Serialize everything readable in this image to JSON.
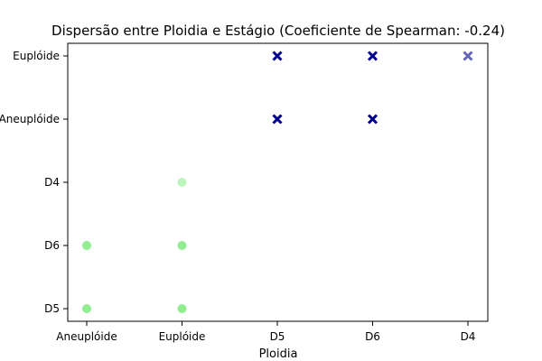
{
  "chart_data": {
    "type": "scatter",
    "title": "Dispersão entre Ploidia e Estágio (Coeficiente de Spearman: -0.24)",
    "xlabel": "Ploidia",
    "ylabel": "",
    "x_categories": [
      "Aneuplóide",
      "Euplóide",
      "D5",
      "D6",
      "D4"
    ],
    "y_categories": [
      "D5",
      "D6",
      "D4",
      "Aneuplóide",
      "Euplóide"
    ],
    "grid": false,
    "legend": "none",
    "series": [
      {
        "marker": "circle",
        "color": "#90ee90",
        "points": [
          {
            "x": "Aneuplóide",
            "y": "D5"
          },
          {
            "x": "Aneuplóide",
            "y": "D6"
          },
          {
            "x": "Euplóide",
            "y": "D5"
          },
          {
            "x": "Euplóide",
            "y": "D6"
          },
          {
            "x": "Euplóide",
            "y": "D4",
            "alpha": 0.6
          }
        ]
      },
      {
        "marker": "x",
        "color": "#00008b",
        "points": [
          {
            "x": "D5",
            "y": "Euplóide"
          },
          {
            "x": "D5",
            "y": "Aneuplóide"
          },
          {
            "x": "D6",
            "y": "Euplóide"
          },
          {
            "x": "D6",
            "y": "Aneuplóide"
          },
          {
            "x": "D4",
            "y": "Euplóide",
            "alpha": 0.6
          }
        ]
      }
    ]
  }
}
